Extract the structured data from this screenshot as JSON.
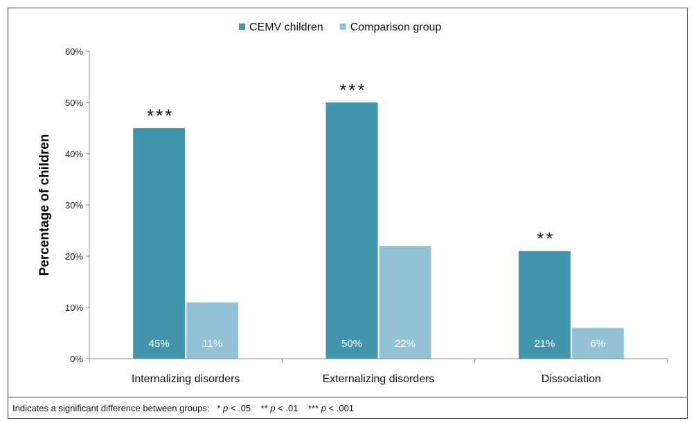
{
  "chart_data": {
    "type": "bar",
    "title": "",
    "xlabel": "",
    "ylabel": "Percentage of children",
    "ylim": [
      0,
      60
    ],
    "yticks": [
      "0%",
      "10%",
      "20%",
      "30%",
      "40%",
      "50%",
      "60%"
    ],
    "categories": [
      "Internalizing disorders",
      "Externalizing disorders",
      "Dissociation"
    ],
    "series": [
      {
        "name": "CEMV children",
        "color": "#4196ad",
        "values": [
          45,
          50,
          21
        ],
        "value_labels": [
          "45%",
          "50%",
          "21%"
        ]
      },
      {
        "name": "Comparison group",
        "color": "#93c3d4",
        "values": [
          11,
          22,
          6
        ],
        "value_labels": [
          "11%",
          "22%",
          "6%"
        ]
      }
    ],
    "significance": [
      "***",
      "***",
      "**"
    ],
    "legend_position": "top-center",
    "grid": false
  },
  "footnote": {
    "text": "Indicates a significant difference between groups:   * p < .05    ** p < .01    *** p < .001"
  }
}
